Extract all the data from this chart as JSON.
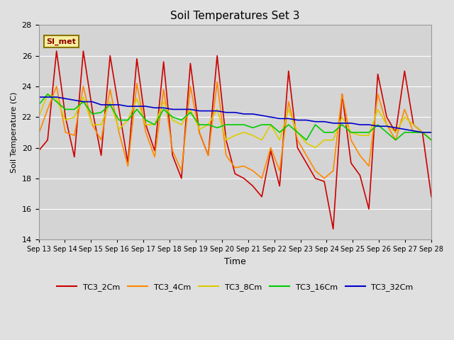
{
  "title": "Soil Temperatures Set 3",
  "xlabel": "Time",
  "ylabel": "Soil Temperature (C)",
  "ylim": [
    14,
    28
  ],
  "tick_labels": [
    "Sep 13",
    "Sep 14",
    "Sep 15",
    "Sep 16",
    "Sep 17",
    "Sep 18",
    "Sep 19",
    "Sep 20",
    "Sep 21",
    "Sep 22",
    "Sep 23",
    "Sep 24",
    "Sep 25",
    "Sep 26",
    "Sep 27",
    "Sep 28"
  ],
  "fig_bg_color": "#e0e0e0",
  "plot_bg_color": "#d4d4d4",
  "annotation_text": "SI_met",
  "annotation_bg": "#f5f0a0",
  "annotation_border": "#8b7500",
  "colors": {
    "TC3_2Cm": "#cc0000",
    "TC3_4Cm": "#ff8800",
    "TC3_8Cm": "#ddcc00",
    "TC3_16Cm": "#00cc00",
    "TC3_32Cm": "#0000cc"
  },
  "series": {
    "TC3_2Cm": [
      19.8,
      20.5,
      26.3,
      22.0,
      19.4,
      26.3,
      22.5,
      19.5,
      26.0,
      22.5,
      19.0,
      25.8,
      21.5,
      19.8,
      25.6,
      19.5,
      18.0,
      25.5,
      21.0,
      19.5,
      26.0,
      20.5,
      18.3,
      18.0,
      17.5,
      16.8,
      19.8,
      17.5,
      25.0,
      20.0,
      19.0,
      18.0,
      17.8,
      14.7,
      23.5,
      19.0,
      18.2,
      16.0,
      24.8,
      22.0,
      21.0,
      25.0,
      21.5,
      21.0,
      16.8
    ],
    "TC3_4Cm": [
      20.9,
      22.5,
      24.0,
      21.0,
      20.8,
      24.0,
      21.5,
      20.5,
      23.8,
      21.0,
      18.8,
      24.2,
      21.0,
      19.4,
      23.8,
      19.8,
      18.5,
      24.0,
      21.0,
      19.5,
      24.3,
      19.5,
      18.7,
      18.8,
      18.5,
      18.0,
      20.0,
      18.5,
      23.0,
      20.5,
      19.5,
      18.5,
      18.0,
      18.5,
      23.5,
      20.5,
      19.5,
      18.8,
      23.5,
      21.5,
      20.5,
      22.5,
      21.0,
      21.0,
      20.5
    ],
    "TC3_8Cm": [
      22.0,
      23.5,
      23.2,
      21.8,
      22.0,
      23.3,
      21.5,
      21.5,
      23.0,
      21.2,
      21.8,
      23.2,
      21.5,
      21.5,
      23.0,
      21.8,
      21.5,
      22.5,
      21.2,
      21.5,
      22.5,
      20.5,
      20.8,
      21.0,
      20.8,
      20.5,
      21.5,
      20.5,
      22.5,
      21.0,
      20.3,
      20.0,
      20.5,
      20.5,
      22.0,
      21.0,
      20.8,
      20.8,
      22.5,
      21.5,
      21.0,
      22.0,
      21.5,
      21.0,
      21.0
    ],
    "TC3_16Cm": [
      22.8,
      23.5,
      23.0,
      22.5,
      22.5,
      23.0,
      22.2,
      22.3,
      22.8,
      21.8,
      21.8,
      22.5,
      21.8,
      21.5,
      22.5,
      22.0,
      21.8,
      22.3,
      21.5,
      21.5,
      21.3,
      21.5,
      21.5,
      21.5,
      21.3,
      21.5,
      21.5,
      21.0,
      21.5,
      21.0,
      20.5,
      21.5,
      21.0,
      21.0,
      21.5,
      21.0,
      21.0,
      21.0,
      21.5,
      21.0,
      20.5,
      21.0,
      21.0,
      21.0,
      20.5
    ],
    "TC3_32Cm": [
      23.3,
      23.3,
      23.3,
      23.2,
      23.1,
      23.0,
      23.0,
      22.8,
      22.8,
      22.8,
      22.7,
      22.7,
      22.7,
      22.6,
      22.6,
      22.5,
      22.5,
      22.5,
      22.4,
      22.4,
      22.4,
      22.3,
      22.3,
      22.2,
      22.2,
      22.1,
      22.0,
      21.9,
      21.9,
      21.8,
      21.8,
      21.7,
      21.7,
      21.6,
      21.6,
      21.6,
      21.5,
      21.5,
      21.4,
      21.4,
      21.3,
      21.2,
      21.1,
      21.0,
      21.0
    ]
  }
}
